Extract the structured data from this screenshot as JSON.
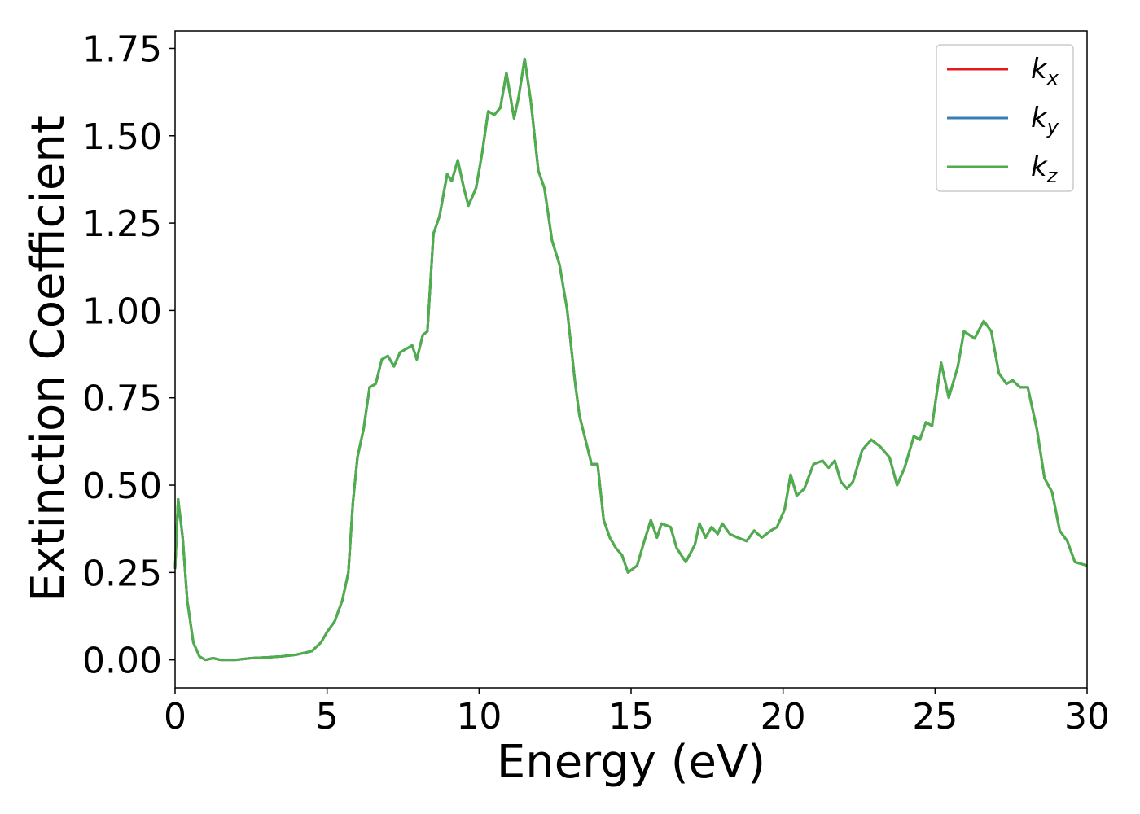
{
  "chart_data": {
    "type": "line",
    "xlabel": "Energy (eV)",
    "ylabel": "Extinction Coefficient",
    "x": [
      0,
      0.1,
      0.25,
      0.4,
      0.6,
      0.8,
      1.0,
      1.25,
      1.5,
      2,
      2.5,
      3,
      3.5,
      4,
      4.5,
      4.8,
      5,
      5.25,
      5.5,
      5.7,
      5.85,
      6.0,
      6.2,
      6.4,
      6.6,
      6.8,
      7.0,
      7.2,
      7.4,
      7.6,
      7.8,
      7.95,
      8.15,
      8.3,
      8.5,
      8.7,
      8.95,
      9.1,
      9.3,
      9.5,
      9.65,
      9.9,
      10.1,
      10.3,
      10.5,
      10.7,
      10.9,
      11.15,
      11.3,
      11.5,
      11.7,
      11.95,
      12.15,
      12.4,
      12.65,
      12.9,
      13.15,
      13.3,
      13.5,
      13.7,
      13.9,
      14.1,
      14.3,
      14.5,
      14.7,
      14.9,
      15.2,
      15.4,
      15.65,
      15.85,
      16.0,
      16.3,
      16.5,
      16.8,
      17.1,
      17.25,
      17.45,
      17.65,
      17.85,
      18.0,
      18.25,
      18.5,
      18.8,
      19.05,
      19.3,
      19.6,
      19.8,
      20.05,
      20.25,
      20.45,
      20.7,
      21.0,
      21.3,
      21.5,
      21.7,
      21.9,
      22.1,
      22.3,
      22.6,
      22.9,
      23.2,
      23.5,
      23.75,
      24.0,
      24.3,
      24.5,
      24.7,
      24.9,
      25.2,
      25.45,
      25.75,
      25.95,
      26.3,
      26.6,
      26.85,
      27.1,
      27.35,
      27.55,
      27.8,
      28.05,
      28.35,
      28.6,
      28.85,
      29.1,
      29.35,
      29.6,
      30
    ],
    "series": [
      {
        "name": "kx",
        "color": "#e41a1c",
        "values": [
          0.26,
          0.46,
          0.35,
          0.17,
          0.05,
          0.01,
          0.0,
          0.005,
          0.0,
          0.0,
          0.005,
          0.007,
          0.01,
          0.015,
          0.025,
          0.05,
          0.08,
          0.11,
          0.17,
          0.25,
          0.45,
          0.58,
          0.66,
          0.78,
          0.79,
          0.86,
          0.87,
          0.84,
          0.88,
          0.89,
          0.9,
          0.86,
          0.93,
          0.94,
          1.22,
          1.27,
          1.39,
          1.37,
          1.43,
          1.35,
          1.3,
          1.35,
          1.45,
          1.57,
          1.56,
          1.58,
          1.68,
          1.55,
          1.61,
          1.72,
          1.6,
          1.4,
          1.35,
          1.2,
          1.13,
          1.0,
          0.8,
          0.7,
          0.63,
          0.56,
          0.56,
          0.4,
          0.35,
          0.32,
          0.3,
          0.25,
          0.27,
          0.33,
          0.4,
          0.35,
          0.39,
          0.38,
          0.32,
          0.28,
          0.33,
          0.39,
          0.35,
          0.38,
          0.36,
          0.39,
          0.36,
          0.35,
          0.34,
          0.37,
          0.35,
          0.37,
          0.38,
          0.43,
          0.53,
          0.47,
          0.49,
          0.56,
          0.57,
          0.55,
          0.57,
          0.51,
          0.49,
          0.51,
          0.6,
          0.63,
          0.61,
          0.58,
          0.5,
          0.55,
          0.64,
          0.63,
          0.68,
          0.67,
          0.85,
          0.75,
          0.84,
          0.94,
          0.92,
          0.97,
          0.94,
          0.82,
          0.79,
          0.8,
          0.78,
          0.78,
          0.66,
          0.52,
          0.48,
          0.37,
          0.34,
          0.28,
          0.27
        ]
      },
      {
        "name": "ky",
        "color": "#377eb8",
        "values": [
          0.26,
          0.46,
          0.35,
          0.17,
          0.05,
          0.01,
          0.0,
          0.005,
          0.0,
          0.0,
          0.005,
          0.007,
          0.01,
          0.015,
          0.025,
          0.05,
          0.08,
          0.11,
          0.17,
          0.25,
          0.45,
          0.58,
          0.66,
          0.78,
          0.79,
          0.86,
          0.87,
          0.84,
          0.88,
          0.89,
          0.9,
          0.86,
          0.93,
          0.94,
          1.22,
          1.27,
          1.39,
          1.37,
          1.43,
          1.35,
          1.3,
          1.35,
          1.45,
          1.57,
          1.56,
          1.58,
          1.68,
          1.55,
          1.61,
          1.72,
          1.6,
          1.4,
          1.35,
          1.2,
          1.13,
          1.0,
          0.8,
          0.7,
          0.63,
          0.56,
          0.56,
          0.4,
          0.35,
          0.32,
          0.3,
          0.25,
          0.27,
          0.33,
          0.4,
          0.35,
          0.39,
          0.38,
          0.32,
          0.28,
          0.33,
          0.39,
          0.35,
          0.38,
          0.36,
          0.39,
          0.36,
          0.35,
          0.34,
          0.37,
          0.35,
          0.37,
          0.38,
          0.43,
          0.53,
          0.47,
          0.49,
          0.56,
          0.57,
          0.55,
          0.57,
          0.51,
          0.49,
          0.51,
          0.6,
          0.63,
          0.61,
          0.58,
          0.5,
          0.55,
          0.64,
          0.63,
          0.68,
          0.67,
          0.85,
          0.75,
          0.84,
          0.94,
          0.92,
          0.97,
          0.94,
          0.82,
          0.79,
          0.8,
          0.78,
          0.78,
          0.66,
          0.52,
          0.48,
          0.37,
          0.34,
          0.28,
          0.27
        ]
      },
      {
        "name": "kz",
        "color": "#4daf4a",
        "values": [
          0.26,
          0.46,
          0.35,
          0.17,
          0.05,
          0.01,
          0.0,
          0.005,
          0.0,
          0.0,
          0.005,
          0.007,
          0.01,
          0.015,
          0.025,
          0.05,
          0.08,
          0.11,
          0.17,
          0.25,
          0.45,
          0.58,
          0.66,
          0.78,
          0.79,
          0.86,
          0.87,
          0.84,
          0.88,
          0.89,
          0.9,
          0.86,
          0.93,
          0.94,
          1.22,
          1.27,
          1.39,
          1.37,
          1.43,
          1.35,
          1.3,
          1.35,
          1.45,
          1.57,
          1.56,
          1.58,
          1.68,
          1.55,
          1.61,
          1.72,
          1.6,
          1.4,
          1.35,
          1.2,
          1.13,
          1.0,
          0.8,
          0.7,
          0.63,
          0.56,
          0.56,
          0.4,
          0.35,
          0.32,
          0.3,
          0.25,
          0.27,
          0.33,
          0.4,
          0.35,
          0.39,
          0.38,
          0.32,
          0.28,
          0.33,
          0.39,
          0.35,
          0.38,
          0.36,
          0.39,
          0.36,
          0.35,
          0.34,
          0.37,
          0.35,
          0.37,
          0.38,
          0.43,
          0.53,
          0.47,
          0.49,
          0.56,
          0.57,
          0.55,
          0.57,
          0.51,
          0.49,
          0.51,
          0.6,
          0.63,
          0.61,
          0.58,
          0.5,
          0.55,
          0.64,
          0.63,
          0.68,
          0.67,
          0.85,
          0.75,
          0.84,
          0.94,
          0.92,
          0.97,
          0.94,
          0.82,
          0.79,
          0.8,
          0.78,
          0.78,
          0.66,
          0.52,
          0.48,
          0.37,
          0.34,
          0.28,
          0.27
        ]
      }
    ],
    "xlim": [
      0,
      30
    ],
    "xticks": [
      0,
      5,
      10,
      15,
      20,
      25,
      30
    ],
    "ylim": [
      -0.08,
      1.8
    ],
    "yticks": [
      {
        "value": 0,
        "label": "0.00"
      },
      0.25,
      {
        "value": 0.5,
        "label": "0.50"
      },
      0.75,
      {
        "value": 1,
        "label": "1.00"
      },
      1.25,
      {
        "value": 1.5,
        "label": "1.50"
      },
      1.75
    ],
    "grid": false,
    "legend": "upper right"
  }
}
